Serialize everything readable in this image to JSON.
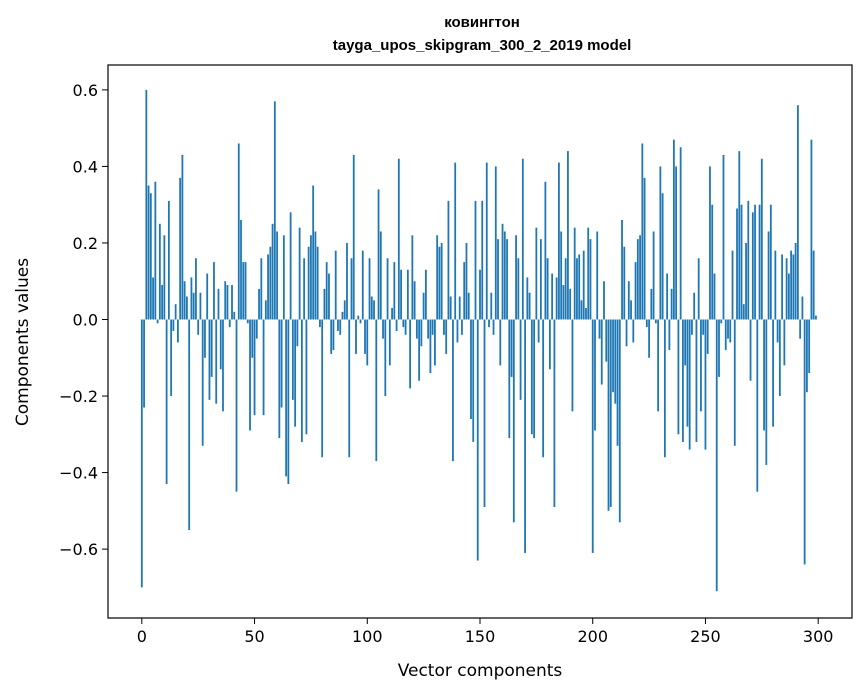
{
  "chart_data": {
    "type": "bar",
    "title": "ковингтон",
    "subtitle": "tayga_upos_skipgram_300_2_2019 model",
    "xlabel": "Vector components",
    "ylabel": "Components values",
    "xlim": [
      -15,
      315
    ],
    "ylim": [
      -0.78,
      0.665
    ],
    "x_ticks": [
      0,
      50,
      100,
      150,
      200,
      250,
      300
    ],
    "x_tick_labels": [
      "0",
      "50",
      "100",
      "150",
      "200",
      "250",
      "300"
    ],
    "y_ticks": [
      -0.6,
      -0.4,
      -0.2,
      0.0,
      0.2,
      0.4,
      0.6
    ],
    "y_tick_labels": [
      "−0.6",
      "−0.4",
      "−0.2",
      "0.0",
      "0.2",
      "0.4",
      "0.6"
    ],
    "bar_color": "#1f77b4",
    "series": [
      {
        "name": "components",
        "values": [
          -0.7,
          -0.23,
          0.6,
          0.35,
          0.33,
          0.11,
          0.36,
          -0.01,
          0.25,
          0.09,
          0.22,
          -0.43,
          0.31,
          -0.2,
          -0.03,
          0.04,
          -0.06,
          0.37,
          0.43,
          0.1,
          0.06,
          -0.55,
          0.11,
          0.07,
          0.16,
          -0.04,
          0.07,
          -0.33,
          -0.1,
          0.12,
          -0.21,
          -0.15,
          0.15,
          -0.22,
          0.08,
          -0.13,
          -0.24,
          0.1,
          0.09,
          -0.02,
          0.09,
          0.02,
          -0.45,
          0.46,
          0.26,
          0.15,
          0.15,
          -0.01,
          -0.29,
          -0.1,
          -0.25,
          -0.05,
          0.08,
          0.16,
          -0.25,
          0.05,
          0.17,
          0.19,
          0.25,
          0.57,
          0.23,
          -0.31,
          -0.23,
          0.22,
          -0.41,
          -0.43,
          0.28,
          -0.21,
          -0.28,
          -0.07,
          0.24,
          -0.32,
          0.16,
          -0.3,
          0.19,
          0.22,
          0.35,
          0.23,
          0.19,
          -0.02,
          -0.36,
          0.08,
          0.15,
          0.12,
          -0.09,
          -0.08,
          0.18,
          -0.03,
          -0.04,
          0.02,
          0.05,
          0.2,
          -0.36,
          0.16,
          0.43,
          -0.09,
          0.01,
          -0.01,
          0.18,
          -0.09,
          -0.12,
          0.16,
          0.06,
          0.05,
          -0.37,
          0.34,
          0.23,
          -0.05,
          -0.2,
          0.16,
          -0.12,
          0.03,
          0.15,
          -0.03,
          0.42,
          0.13,
          -0.02,
          -0.04,
          0.13,
          -0.18,
          0.22,
          0.1,
          -0.05,
          -0.16,
          -0.07,
          0.07,
          0.13,
          -0.05,
          -0.14,
          -0.04,
          -0.12,
          0.22,
          0.19,
          0.2,
          -0.04,
          -0.09,
          0.31,
          0.06,
          -0.37,
          0.41,
          -0.06,
          0.06,
          -0.04,
          0.15,
          0.2,
          0.07,
          -0.26,
          -0.32,
          0.31,
          -0.63,
          0.13,
          0.31,
          -0.49,
          0.41,
          -0.02,
          0.07,
          -0.04,
          0.4,
          0.21,
          -0.12,
          0.25,
          0.23,
          0.21,
          -0.31,
          -0.15,
          -0.53,
          0.22,
          0.16,
          -0.21,
          0.42,
          -0.61,
          0.11,
          0.07,
          -0.3,
          -0.31,
          0.24,
          -0.06,
          0.21,
          -0.36,
          0.36,
          0.16,
          -0.13,
          0.12,
          -0.49,
          0.11,
          0.41,
          0.23,
          0.09,
          0.16,
          0.44,
          0.08,
          -0.24,
          0.24,
          0.16,
          0.17,
          0.05,
          0.18,
          0.03,
          0.24,
          0.21,
          -0.61,
          -0.29,
          0.23,
          -0.05,
          -0.17,
          0.1,
          -0.11,
          -0.5,
          -0.49,
          -0.19,
          -0.22,
          -0.33,
          -0.53,
          0.26,
          0.19,
          -0.07,
          0.1,
          0.05,
          -0.06,
          0.15,
          0.21,
          0.22,
          0.46,
          0.37,
          -0.02,
          -0.1,
          0.08,
          0.23,
          -0.01,
          -0.24,
          0.4,
          0.33,
          -0.36,
          0.12,
          -0.08,
          0.08,
          0.47,
          0.4,
          -0.3,
          0.45,
          -0.32,
          -0.12,
          -0.28,
          -0.34,
          -0.04,
          0.07,
          -0.32,
          0.16,
          -0.24,
          -0.04,
          -0.34,
          -0.09,
          0.4,
          0.3,
          0.12,
          -0.71,
          -0.15,
          -0.01,
          0.43,
          -0.08,
          -0.05,
          -0.06,
          0.18,
          -0.33,
          0.29,
          0.44,
          0.3,
          0.04,
          0.2,
          0.31,
          -0.16,
          0.28,
          0.3,
          -0.45,
          0.3,
          0.42,
          -0.29,
          -0.38,
          0.23,
          0.3,
          -0.28,
          0.18,
          -0.06,
          -0.2,
          0.17,
          -0.12,
          0.16,
          0.12,
          0.18,
          0.17,
          0.2,
          0.56,
          -0.05,
          0.06,
          -0.64,
          -0.19,
          -0.14,
          0.47,
          0.18,
          0.01
        ]
      }
    ]
  }
}
